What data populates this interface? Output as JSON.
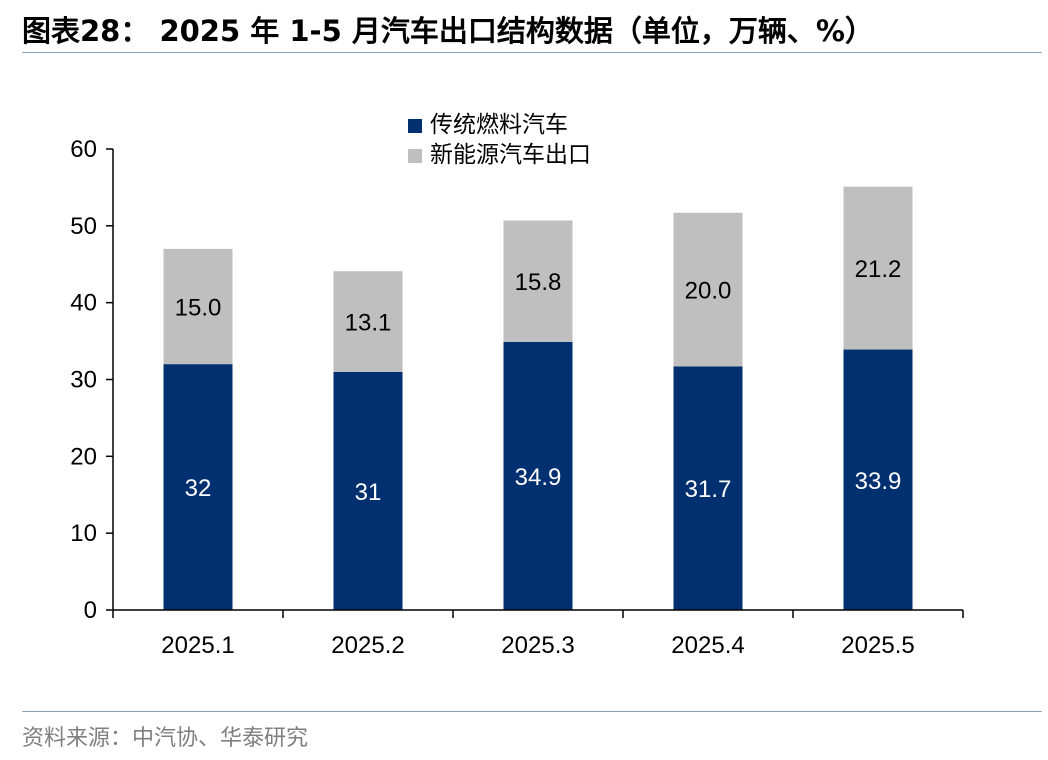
{
  "header": {
    "title": "图表28： 2025 年 1-5 月汽车出口结构数据（单位，万辆、%）"
  },
  "footer": {
    "source": "资料来源：中汽协、华泰研究"
  },
  "colors": {
    "fuel": "#003070",
    "nev": "#bfbfbf",
    "axis": "#000000"
  },
  "chart_data": {
    "type": "bar",
    "stacked": true,
    "categories": [
      "2025.1",
      "2025.2",
      "2025.3",
      "2025.4",
      "2025.5"
    ],
    "series": [
      {
        "name": "传统燃料汽车",
        "values": [
          32,
          31,
          34.9,
          31.7,
          33.9
        ],
        "labels": [
          "32",
          "31",
          "34.9",
          "31.7",
          "33.9"
        ]
      },
      {
        "name": "新能源汽车出口",
        "values": [
          15.0,
          13.1,
          15.8,
          20.0,
          21.2
        ],
        "labels": [
          "15.0",
          "13.1",
          "15.8",
          "20.0",
          "21.2"
        ]
      }
    ],
    "ylim": [
      0,
      60
    ],
    "yticks": [
      0,
      10,
      20,
      30,
      40,
      50,
      60
    ],
    "legend": "top-center",
    "grid": false
  }
}
